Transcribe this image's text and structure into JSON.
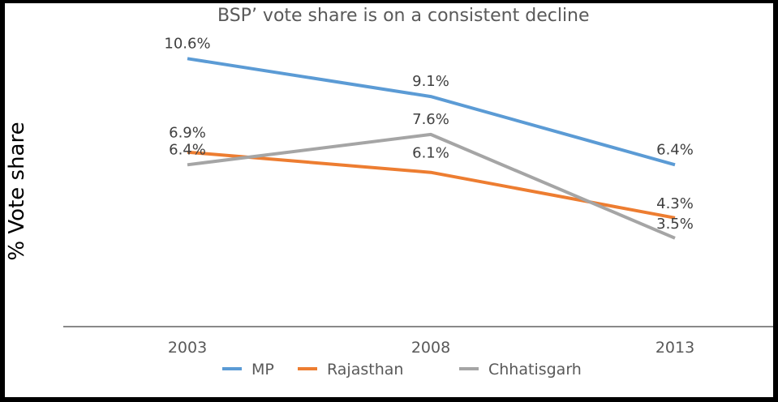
{
  "chart_data": {
    "type": "line",
    "title": "BSP’ vote share is on a consistent decline",
    "xlabel": "",
    "ylabel": "% Vote share",
    "categories": [
      "2003",
      "2008",
      "2013"
    ],
    "ylim": [
      0,
      11
    ],
    "grid": false,
    "legend_position": "bottom",
    "series": [
      {
        "name": "MP",
        "color": "#5B9BD5",
        "values": [
          10.6,
          9.1,
          6.4
        ],
        "labels": [
          "10.6%",
          "9.1%",
          "6.4%"
        ]
      },
      {
        "name": "Rajasthan",
        "color": "#ED7D31",
        "values": [
          6.9,
          6.1,
          4.3
        ],
        "labels": [
          "6.9%",
          "6.1%",
          "4.3%"
        ]
      },
      {
        "name": "Chhatisgarh",
        "color": "#A5A5A5",
        "values": [
          6.4,
          7.6,
          3.5
        ],
        "labels": [
          "6.4%",
          "7.6%",
          "3.5%"
        ]
      }
    ]
  }
}
